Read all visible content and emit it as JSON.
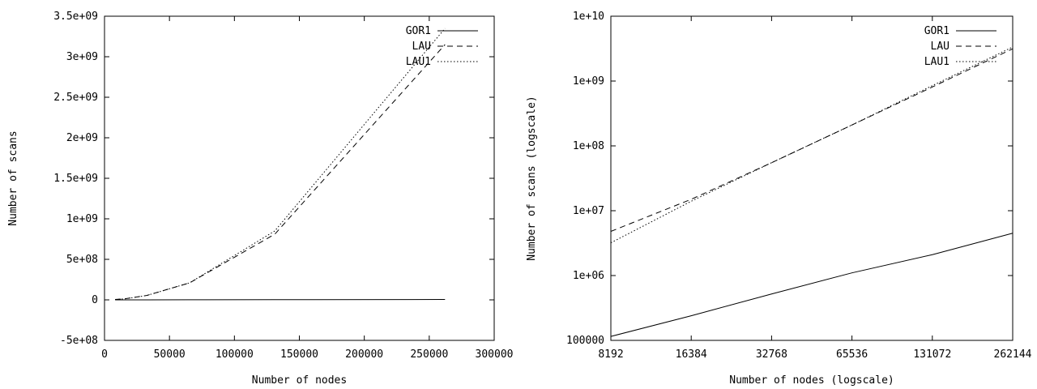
{
  "chart_data": [
    {
      "type": "line",
      "title": "",
      "xlabel": "Number of nodes",
      "ylabel": "Number of scans",
      "xlim": [
        0,
        300000
      ],
      "ylim": [
        -500000000,
        3500000000
      ],
      "x_scale": "linear",
      "y_scale": "linear",
      "grid": false,
      "legend_position": "top-right",
      "xticks": [
        0,
        50000,
        100000,
        150000,
        200000,
        250000,
        300000
      ],
      "xtick_labels": [
        "0",
        "50000",
        "100000",
        "150000",
        "200000",
        "250000",
        "300000"
      ],
      "yticks": [
        -500000000,
        0,
        500000000,
        1000000000,
        1500000000,
        2000000000,
        2500000000,
        3000000000,
        3500000000
      ],
      "ytick_labels": [
        "-5e+08",
        "0",
        "5e+08",
        "1e+09",
        "1.5e+09",
        "2e+09",
        "2.5e+09",
        "3e+09",
        "3.5e+09"
      ],
      "x": [
        8192,
        16384,
        32768,
        65536,
        131072,
        262144
      ],
      "series": [
        {
          "name": "GOR1",
          "dash": "solid",
          "values": [
            115000,
            240000,
            520000,
            1100000,
            2100000,
            4500000
          ]
        },
        {
          "name": "LAU",
          "dash": "dashed",
          "values": [
            4800000,
            15000000,
            55000000,
            210000000,
            810000000,
            3150000000
          ]
        },
        {
          "name": "LAU1",
          "dash": "dotted",
          "values": [
            3200000,
            14000000,
            55000000,
            210000000,
            850000000,
            3350000000
          ]
        }
      ]
    },
    {
      "type": "line",
      "title": "",
      "xlabel": "Number of nodes (logscale)",
      "ylabel": "Number of scans (logscale)",
      "xlim": [
        8192,
        262144
      ],
      "ylim": [
        100000,
        10000000000
      ],
      "x_scale": "log",
      "y_scale": "log",
      "grid": false,
      "legend_position": "top-right",
      "xticks": [
        8192,
        16384,
        32768,
        65536,
        131072,
        262144
      ],
      "xtick_labels": [
        "8192",
        "16384",
        "32768",
        "65536",
        "131072",
        "262144"
      ],
      "yticks": [
        100000,
        1000000,
        10000000,
        100000000,
        1000000000,
        10000000000
      ],
      "ytick_labels": [
        "100000",
        "1e+06",
        "1e+07",
        "1e+08",
        "1e+09",
        "1e+10"
      ],
      "x": [
        8192,
        16384,
        32768,
        65536,
        131072,
        262144
      ],
      "series": [
        {
          "name": "GOR1",
          "dash": "solid",
          "values": [
            115000,
            240000,
            520000,
            1100000,
            2100000,
            4500000
          ]
        },
        {
          "name": "LAU",
          "dash": "dashed",
          "values": [
            4800000,
            15000000,
            55000000,
            210000000,
            810000000,
            3150000000
          ]
        },
        {
          "name": "LAU1",
          "dash": "dotted",
          "values": [
            3200000,
            14000000,
            55000000,
            210000000,
            850000000,
            3350000000
          ]
        }
      ]
    }
  ]
}
